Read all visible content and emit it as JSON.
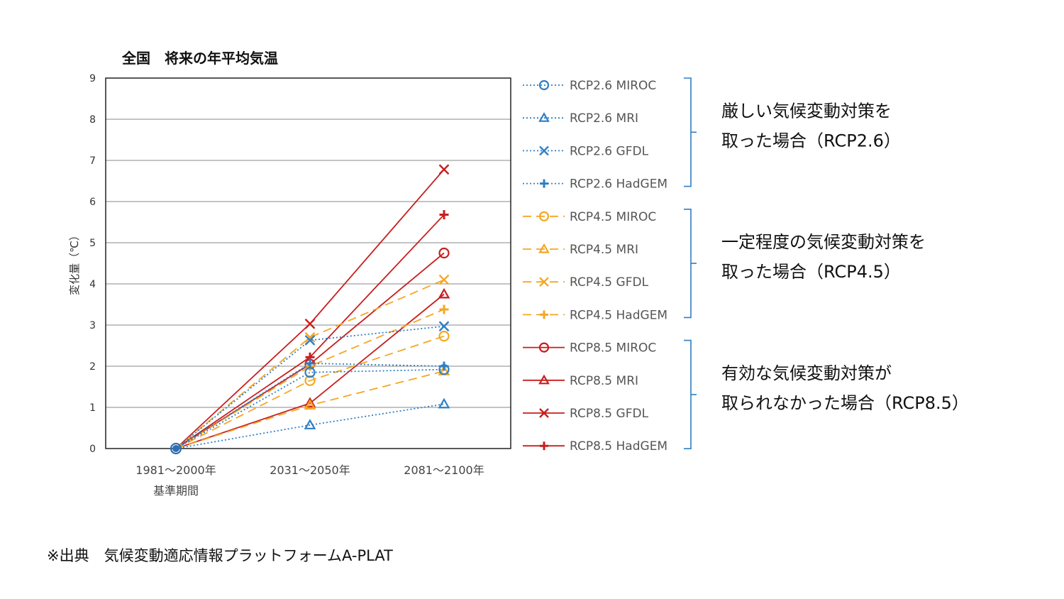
{
  "chart_data": {
    "type": "line",
    "title": "全国　将来の年平均気温",
    "ylabel": "変化量（℃）",
    "xlabel_sub": "基準期間",
    "categories": [
      "1981～2000年",
      "2031～2050年",
      "2081～2100年"
    ],
    "ylim": [
      0,
      9
    ],
    "yticks": [
      "0",
      "1",
      "2",
      "3",
      "4",
      "5",
      "6",
      "7",
      "8",
      "9"
    ],
    "grid": true,
    "legend_position": "right",
    "series": [
      {
        "name": "RCP2.6 MIROC",
        "scenario": "RCP2.6",
        "color": "#2f7fc4",
        "dash": "dotted",
        "marker": "circle",
        "values": [
          0,
          1.85,
          1.92
        ]
      },
      {
        "name": "RCP2.6 MRI",
        "scenario": "RCP2.6",
        "color": "#2f7fc4",
        "dash": "dotted",
        "marker": "triangle",
        "values": [
          0,
          0.57,
          1.08
        ]
      },
      {
        "name": "RCP2.6 GFDL",
        "scenario": "RCP2.6",
        "color": "#2f7fc4",
        "dash": "dotted",
        "marker": "x",
        "values": [
          0,
          2.63,
          2.97
        ]
      },
      {
        "name": "RCP2.6 HadGEM",
        "scenario": "RCP2.6",
        "color": "#2f7fc4",
        "dash": "dotted",
        "marker": "plus",
        "values": [
          0,
          2.07,
          2.0
        ]
      },
      {
        "name": "RCP4.5 MIROC",
        "scenario": "RCP4.5",
        "color": "#f5a623",
        "dash": "dashed",
        "marker": "circle",
        "values": [
          0,
          1.65,
          2.73
        ]
      },
      {
        "name": "RCP4.5 MRI",
        "scenario": "RCP4.5",
        "color": "#f5a623",
        "dash": "dashed",
        "marker": "triangle",
        "values": [
          0,
          1.05,
          1.88
        ]
      },
      {
        "name": "RCP4.5 GFDL",
        "scenario": "RCP4.5",
        "color": "#f5a623",
        "dash": "dashed",
        "marker": "x",
        "values": [
          0,
          2.7,
          4.1
        ]
      },
      {
        "name": "RCP4.5 HadGEM",
        "scenario": "RCP4.5",
        "color": "#f5a623",
        "dash": "dashed",
        "marker": "plus",
        "values": [
          0,
          2.0,
          3.38
        ]
      },
      {
        "name": "RCP8.5 MIROC",
        "scenario": "RCP8.5",
        "color": "#c81e1e",
        "dash": "solid",
        "marker": "circle",
        "values": [
          0,
          2.05,
          4.75
        ]
      },
      {
        "name": "RCP8.5 MRI",
        "scenario": "RCP8.5",
        "color": "#c81e1e",
        "dash": "solid",
        "marker": "triangle",
        "values": [
          0,
          1.1,
          3.75
        ]
      },
      {
        "name": "RCP8.5 GFDL",
        "scenario": "RCP8.5",
        "color": "#c81e1e",
        "dash": "solid",
        "marker": "x",
        "values": [
          0,
          3.03,
          6.78
        ]
      },
      {
        "name": "RCP8.5 HadGEM",
        "scenario": "RCP8.5",
        "color": "#c81e1e",
        "dash": "solid",
        "marker": "plus",
        "values": [
          0,
          2.22,
          5.68
        ]
      }
    ],
    "legend_groups": [
      {
        "scenario": "RCP2.6",
        "lines": [
          "厳しい気候変動対策を",
          "取った場合（RCP2.6）"
        ]
      },
      {
        "scenario": "RCP4.5",
        "lines": [
          "一定程度の気候変動対策を",
          "取った場合（RCP4.5）"
        ]
      },
      {
        "scenario": "RCP8.5",
        "lines": [
          "有効な気候変動対策が",
          "取られなかった場合（RCP8.5）"
        ]
      }
    ]
  },
  "source_note": "※出典　気候変動適応情報プラットフォームA-PLAT",
  "colors": {
    "rcp26": "#2f7fc4",
    "rcp45": "#f5a623",
    "rcp85": "#c81e1e",
    "bracket": "#2f7fc4"
  }
}
